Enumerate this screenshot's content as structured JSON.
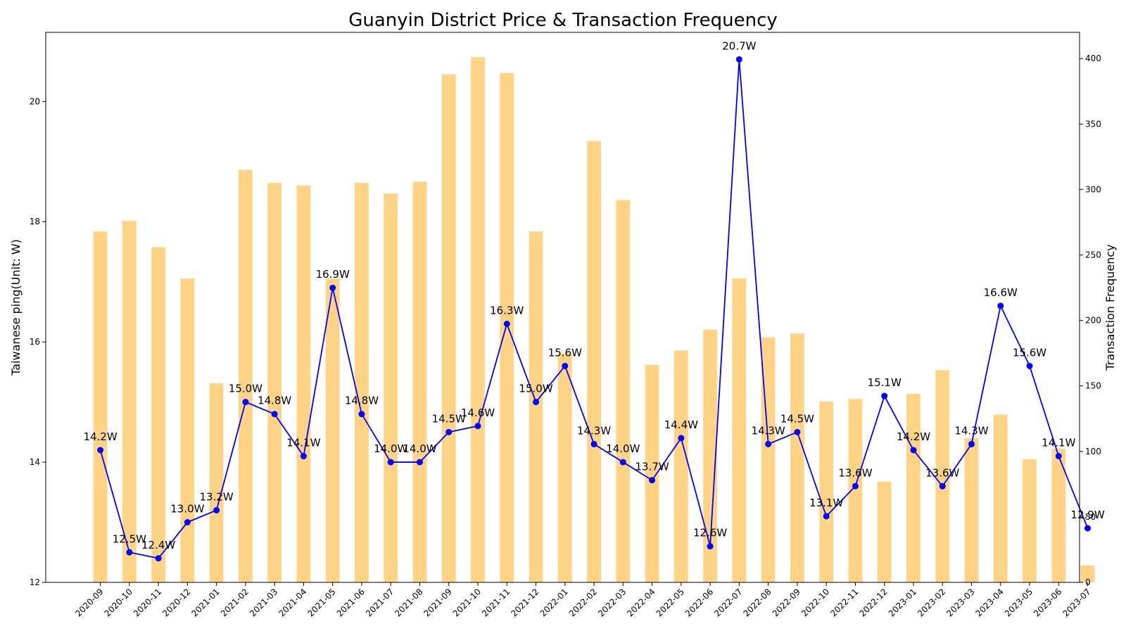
{
  "chart_data": {
    "type": "bar",
    "title": "Guanyin District Price & Transaction Frequency",
    "ylabel_left": "Taiwanese ping(Unit: W)",
    "ylabel_right": "Transaction Frequency",
    "categories": [
      "2020-09",
      "2020-10",
      "2020-11",
      "2020-12",
      "2021-01",
      "2021-02",
      "2021-03",
      "2021-04",
      "2021-05",
      "2021-06",
      "2021-07",
      "2021-08",
      "2021-09",
      "2021-10",
      "2021-11",
      "2021-12",
      "2022-01",
      "2022-02",
      "2022-03",
      "2022-04",
      "2022-05",
      "2022-06",
      "2022-07",
      "2022-08",
      "2022-09",
      "2022-10",
      "2022-11",
      "2022-12",
      "2023-01",
      "2023-02",
      "2023-03",
      "2023-04",
      "2023-05",
      "2023-06",
      "2023-07"
    ],
    "series": [
      {
        "type": "bar",
        "axis": "right",
        "color": "#ffd27f",
        "values": [
          268,
          276,
          256,
          232,
          152,
          315,
          305,
          303,
          232,
          305,
          297,
          306,
          388,
          401,
          389,
          268,
          175,
          337,
          292,
          166,
          177,
          193,
          232,
          187,
          190,
          138,
          140,
          77,
          144,
          162,
          110,
          128,
          94,
          102,
          13
        ]
      },
      {
        "type": "line",
        "axis": "left",
        "color": "#0000ff",
        "values": [
          14.2,
          12.5,
          12.4,
          13.0,
          13.2,
          15.0,
          14.8,
          14.1,
          16.9,
          14.8,
          14.0,
          14.0,
          14.5,
          14.6,
          16.3,
          15.0,
          15.6,
          14.3,
          14.0,
          13.7,
          14.4,
          12.6,
          20.7,
          14.3,
          14.5,
          13.1,
          13.6,
          15.1,
          14.2,
          13.6,
          14.3,
          16.6,
          15.6,
          14.1,
          12.9
        ],
        "labels": [
          "14.2W",
          "12.5W",
          "12.4W",
          "13.0W",
          "13.2W",
          "15.0W",
          "14.8W",
          "14.1W",
          "16.9W",
          "14.8W",
          "14.0W",
          "14.0W",
          "14.5W",
          "14.6W",
          "16.3W",
          "15.0W",
          "15.6W",
          "14.3W",
          "14.0W",
          "13.7W",
          "14.4W",
          "12.6W",
          "20.7W",
          "14.3W",
          "14.5W",
          "13.1W",
          "13.6W",
          "15.1W",
          "14.2W",
          "13.6W",
          "14.3W",
          "16.6W",
          "15.6W",
          "14.1W",
          "12.9W"
        ]
      }
    ],
    "ylim_left": [
      12,
      21.15
    ],
    "yticks_left": [
      "12",
      "14",
      "16",
      "18",
      "20"
    ],
    "ylim_right": [
      0,
      420
    ],
    "yticks_right": [
      "0",
      "50",
      "100",
      "150",
      "200",
      "250",
      "300",
      "350",
      "400"
    ],
    "grid": false
  }
}
